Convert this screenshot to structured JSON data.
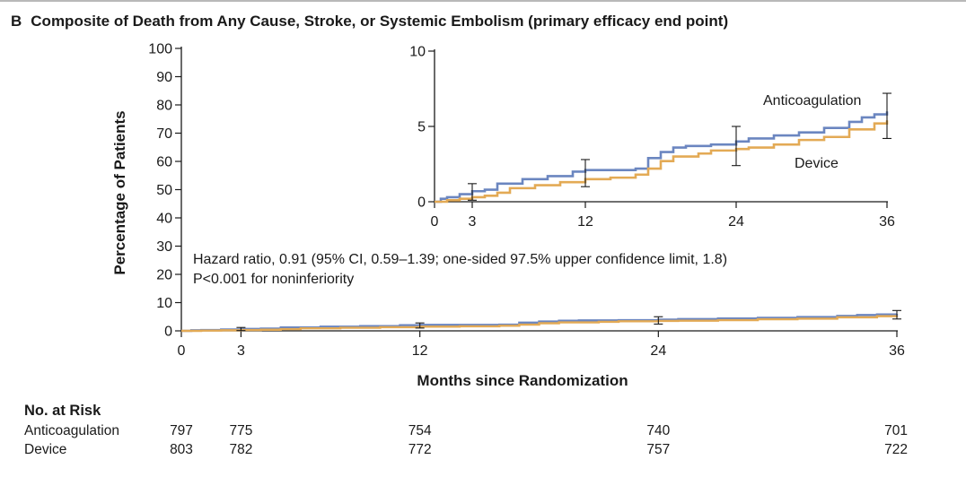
{
  "figure": {
    "panel_letter": "B",
    "title": "Composite of Death from Any Cause, Stroke, or Systemic Embolism (primary efficacy end point)",
    "annotation_line1": "Hazard ratio, 0.91 (95% CI, 0.59–1.39; one-sided 97.5% upper confidence limit, 1.8)",
    "annotation_line2": "P<0.001 for noninferiority"
  },
  "chart_data": [
    {
      "type": "line",
      "panel": "main",
      "xlabel": "Months since Randomization",
      "ylabel": "Percentage of Patients",
      "xlim": [
        0,
        36
      ],
      "ylim": [
        0,
        100
      ],
      "x_ticks": [
        0,
        3,
        12,
        24,
        36
      ],
      "y_ticks": [
        0,
        10,
        20,
        30,
        40,
        50,
        60,
        70,
        80,
        90,
        100
      ],
      "colors": {
        "Anticoagulation": "#6b86c0",
        "Device": "#e3aa55"
      },
      "series": [
        {
          "name": "Anticoagulation",
          "x": [
            0,
            0.5,
            1,
            2,
            3,
            4,
            5,
            7,
            9,
            11,
            12,
            14,
            16,
            17,
            18,
            19,
            20,
            22,
            24,
            25,
            27,
            29,
            31,
            33,
            34,
            35,
            36
          ],
          "y": [
            0,
            0.2,
            0.3,
            0.5,
            0.7,
            0.8,
            1.2,
            1.5,
            1.7,
            2.0,
            2.1,
            2.1,
            2.2,
            2.9,
            3.3,
            3.6,
            3.7,
            3.8,
            4.0,
            4.2,
            4.4,
            4.6,
            4.9,
            5.3,
            5.6,
            5.8,
            6.0
          ]
        },
        {
          "name": "Device",
          "x": [
            0,
            1,
            2,
            3,
            4,
            5,
            6,
            8,
            10,
            12,
            14,
            16,
            17,
            18,
            19,
            21,
            22,
            24,
            25,
            27,
            29,
            31,
            33,
            35,
            36
          ],
          "y": [
            0,
            0.1,
            0.2,
            0.3,
            0.4,
            0.6,
            0.9,
            1.1,
            1.3,
            1.5,
            1.6,
            1.8,
            2.2,
            2.7,
            3.0,
            3.2,
            3.4,
            3.5,
            3.6,
            3.8,
            4.1,
            4.3,
            4.8,
            5.2,
            5.4
          ]
        }
      ],
      "error_bars": [
        {
          "x": 3,
          "low": 0.1,
          "high": 1.2
        },
        {
          "x": 12,
          "low": 1.0,
          "high": 2.8
        },
        {
          "x": 24,
          "low": 2.4,
          "high": 5.0
        },
        {
          "x": 36,
          "low": 4.2,
          "high": 7.2
        }
      ]
    },
    {
      "type": "line",
      "panel": "inset",
      "xlim": [
        0,
        36
      ],
      "ylim": [
        0,
        10
      ],
      "x_ticks": [
        0,
        3,
        12,
        24,
        36
      ],
      "y_ticks": [
        0,
        5,
        10
      ],
      "labels": [
        "Anticoagulation",
        "Device"
      ]
    }
  ],
  "risk_table": {
    "header": "No. at Risk",
    "columns_months": [
      0,
      3,
      12,
      24,
      36
    ],
    "rows": [
      {
        "label": "Anticoagulation",
        "values": [
          "797",
          "775",
          "754",
          "740",
          "701"
        ]
      },
      {
        "label": "Device",
        "values": [
          "803",
          "782",
          "772",
          "757",
          "722"
        ]
      }
    ]
  }
}
